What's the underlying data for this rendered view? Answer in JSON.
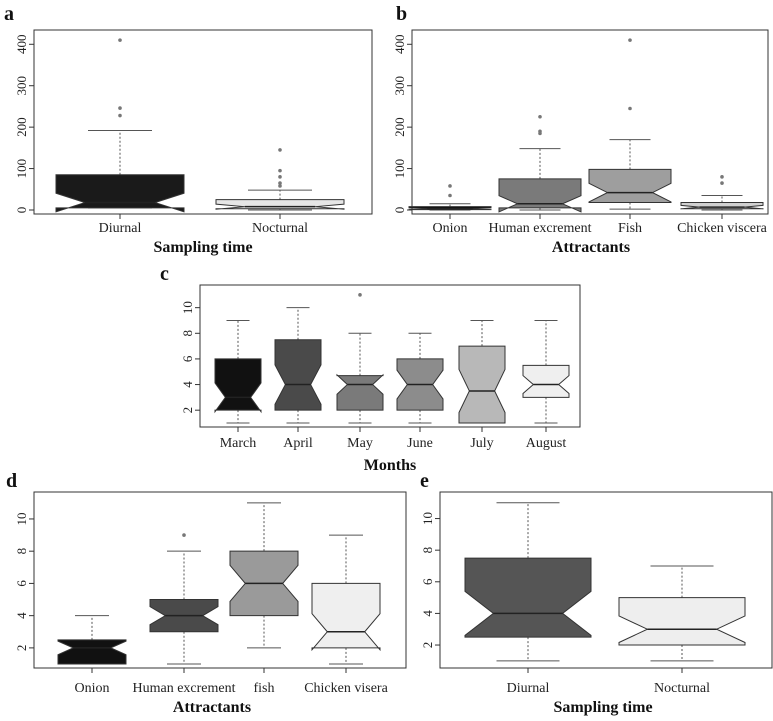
{
  "chart_data": [
    {
      "type": "boxplot",
      "panel": "a",
      "xlabel": "Sampling time",
      "ylabel": "",
      "ylim": [
        0,
        420
      ],
      "yticks": [
        0,
        100,
        200,
        300,
        400
      ],
      "categories": [
        "Diurnal",
        "Nocturnal"
      ],
      "boxes": [
        {
          "name": "Diurnal",
          "min": 5,
          "q1": 5,
          "median": 18,
          "q3": 85,
          "max": 192,
          "outliers": [
            228,
            246,
            410
          ],
          "color": "#1a1a1a"
        },
        {
          "name": "Nocturnal",
          "min": 0,
          "q1": 3,
          "median": 8,
          "q3": 25,
          "max": 48,
          "outliers": [
            58,
            65,
            80,
            95,
            145
          ],
          "color": "#e6e6e6"
        }
      ]
    },
    {
      "type": "boxplot",
      "panel": "b",
      "xlabel": "Attractants",
      "ylabel": "",
      "ylim": [
        0,
        420
      ],
      "yticks": [
        0,
        100,
        200,
        300,
        400
      ],
      "categories": [
        "Onion",
        "Human excrement",
        "Fish",
        "Chicken viscera"
      ],
      "boxes": [
        {
          "name": "Onion",
          "min": 0,
          "q1": 1,
          "median": 3,
          "q3": 8,
          "max": 15,
          "outliers": [
            35,
            58
          ],
          "color": "#111111"
        },
        {
          "name": "Human excrement",
          "min": 0,
          "q1": 5,
          "median": 15,
          "q3": 75,
          "max": 148,
          "outliers": [
            185,
            190,
            225
          ],
          "color": "#7a7a7a"
        },
        {
          "name": "Fish",
          "min": 2,
          "q1": 18,
          "median": 42,
          "q3": 98,
          "max": 170,
          "outliers": [
            245,
            410
          ],
          "color": "#9e9e9e"
        },
        {
          "name": "Chicken viscera",
          "min": 0,
          "q1": 3,
          "median": 7,
          "q3": 18,
          "max": 35,
          "outliers": [
            65,
            80
          ],
          "color": "#d0d0d0"
        }
      ]
    },
    {
      "type": "boxplot",
      "panel": "c",
      "xlabel": "Months",
      "ylabel": "",
      "ylim": [
        1,
        11.3
      ],
      "yticks": [
        2,
        4,
        6,
        8,
        10
      ],
      "categories": [
        "March",
        "April",
        "May",
        "June",
        "July",
        "August"
      ],
      "boxes": [
        {
          "name": "March",
          "min": 1,
          "q1": 2,
          "median": 3,
          "q3": 6,
          "max": 9,
          "outliers": [],
          "color": "#111111"
        },
        {
          "name": "April",
          "min": 1,
          "q1": 2,
          "median": 4,
          "q3": 7.5,
          "max": 10,
          "outliers": [],
          "color": "#4a4a4a"
        },
        {
          "name": "May",
          "min": 1,
          "q1": 2,
          "median": 4,
          "q3": 4.7,
          "max": 8,
          "outliers": [
            11
          ],
          "color": "#7a7a7a"
        },
        {
          "name": "June",
          "min": 1,
          "q1": 2,
          "median": 4,
          "q3": 6,
          "max": 8,
          "outliers": [],
          "color": "#8c8c8c"
        },
        {
          "name": "July",
          "min": 1,
          "q1": 1,
          "median": 3.5,
          "q3": 7,
          "max": 9,
          "outliers": [],
          "color": "#b8b8b8"
        },
        {
          "name": "August",
          "min": 1,
          "q1": 3,
          "median": 4,
          "q3": 5.5,
          "max": 9,
          "outliers": [],
          "color": "#efefef"
        }
      ]
    },
    {
      "type": "boxplot",
      "panel": "d",
      "xlabel": "Attractants",
      "ylabel": "",
      "ylim": [
        1,
        11.3
      ],
      "yticks": [
        2,
        4,
        6,
        8,
        10
      ],
      "categories": [
        "Onion",
        "Human excrement",
        "fish",
        "Chicken visera"
      ],
      "boxes": [
        {
          "name": "Onion",
          "min": 1,
          "q1": 1,
          "median": 2,
          "q3": 2.5,
          "max": 4,
          "outliers": [],
          "color": "#111111"
        },
        {
          "name": "Human excrement",
          "min": 1,
          "q1": 3,
          "median": 4,
          "q3": 5,
          "max": 8,
          "outliers": [
            9
          ],
          "color": "#4a4a4a"
        },
        {
          "name": "fish",
          "min": 2,
          "q1": 4,
          "median": 6,
          "q3": 8,
          "max": 11,
          "outliers": [],
          "color": "#9a9a9a"
        },
        {
          "name": "Chicken visera",
          "min": 1,
          "q1": 2,
          "median": 3,
          "q3": 6,
          "max": 9,
          "outliers": [],
          "color": "#efefef"
        }
      ]
    },
    {
      "type": "boxplot",
      "panel": "e",
      "xlabel": "Sampling time",
      "ylabel": "",
      "ylim": [
        0.8,
        11.3
      ],
      "yticks": [
        2,
        4,
        6,
        8,
        10
      ],
      "categories": [
        "Diurnal",
        "Nocturnal"
      ],
      "boxes": [
        {
          "name": "Diurnal",
          "min": 1,
          "q1": 2.5,
          "median": 4,
          "q3": 7.5,
          "max": 11,
          "outliers": [],
          "color": "#555555"
        },
        {
          "name": "Nocturnal",
          "min": 1,
          "q1": 2,
          "median": 3,
          "q3": 5,
          "max": 7,
          "outliers": [],
          "color": "#eeeeee"
        }
      ]
    }
  ]
}
